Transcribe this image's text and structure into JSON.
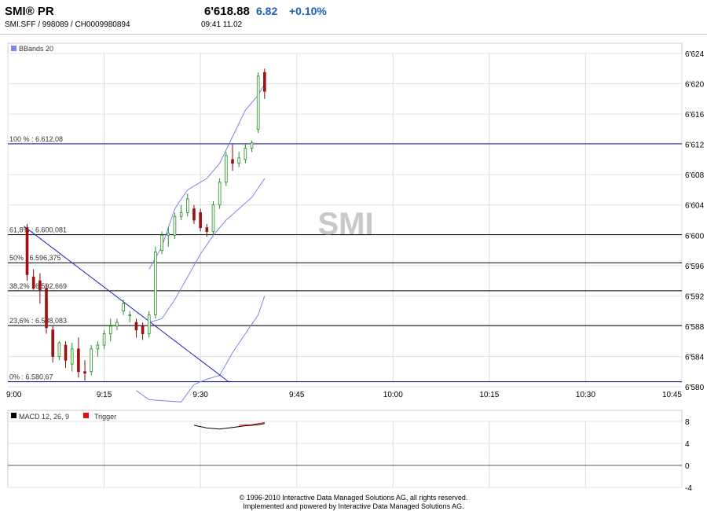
{
  "header": {
    "title": "SMI® PR",
    "subtitle": "SMI.SFF   /   998089   /   CH0009980894",
    "price": "6'618.88",
    "change": "6.82",
    "change_pct": "+0.10%",
    "time": "09:41   11.02",
    "change_color": "#1a5fb4"
  },
  "footer": {
    "line1": "© 1996-2010 Interactive Data Managed Solutions AG, all rights reserved.",
    "line2": "Implemented and powered by Interactive Data Managed Solutions AG."
  },
  "chart_data": [
    {
      "type": "candlestick",
      "legend": [
        {
          "label": "BBands 20",
          "color": "#8080ee"
        }
      ],
      "watermark": "SMI",
      "x_ticks": [
        "9:00",
        "9:15",
        "9:30",
        "9:45",
        "10:00",
        "10:15",
        "10:30",
        "10:45"
      ],
      "y_ticks": [
        "6'624",
        "6'620",
        "6'616",
        "6'612",
        "6'608",
        "6'604",
        "6'600",
        "6'596",
        "6'592",
        "6'588",
        "6'584",
        "6'580"
      ],
      "xlim": [
        0,
        105
      ],
      "ylim": [
        6580,
        6624
      ],
      "grid": true,
      "fib_levels": [
        {
          "label": "100 % : 6.612,08",
          "value": 6612.08,
          "color": "#1a1a9a"
        },
        {
          "label": "61,8% : 6.600,081",
          "value": 6600.081,
          "color": "#000000"
        },
        {
          "label": "50% : 6.596,375",
          "value": 6596.375,
          "color": "#000000"
        },
        {
          "label": "38,2% : 6.592,669",
          "value": 6592.669,
          "color": "#000000"
        },
        {
          "label": "23,6% : 6.588,083",
          "value": 6588.083,
          "color": "#000000"
        },
        {
          "label": "0% : 6.580,67",
          "value": 6580.67,
          "color": "#1a1a9a"
        }
      ],
      "trendline": {
        "from": [
          2.5,
          6601.2
        ],
        "to": [
          34.5,
          6580.6
        ],
        "color": "#2020c0"
      },
      "candles": [
        {
          "t": 3,
          "o": 6601.0,
          "h": 6601.5,
          "l": 6594.0,
          "c": 6594.8
        },
        {
          "t": 4,
          "o": 6594.5,
          "h": 6595.5,
          "l": 6592.8,
          "c": 6593.0
        },
        {
          "t": 5,
          "o": 6594.0,
          "h": 6595.0,
          "l": 6591.0,
          "c": 6592.8
        },
        {
          "t": 6,
          "o": 6593.0,
          "h": 6593.5,
          "l": 6587.0,
          "c": 6587.8
        },
        {
          "t": 7,
          "o": 6587.5,
          "h": 6588.0,
          "l": 6583.2,
          "c": 6584.0
        },
        {
          "t": 8,
          "o": 6584.0,
          "h": 6586.0,
          "l": 6583.5,
          "c": 6585.8
        },
        {
          "t": 9,
          "o": 6585.5,
          "h": 6586.0,
          "l": 6582.5,
          "c": 6583.5
        },
        {
          "t": 10,
          "o": 6583.0,
          "h": 6585.8,
          "l": 6582.0,
          "c": 6585.0
        },
        {
          "t": 11,
          "o": 6585.0,
          "h": 6586.5,
          "l": 6581.2,
          "c": 6582.0
        },
        {
          "t": 12,
          "o": 6582.0,
          "h": 6583.5,
          "l": 6580.8,
          "c": 6581.8
        },
        {
          "t": 13,
          "o": 6582.0,
          "h": 6585.5,
          "l": 6581.5,
          "c": 6585.0
        },
        {
          "t": 14,
          "o": 6585.0,
          "h": 6586.0,
          "l": 6584.0,
          "c": 6585.5
        },
        {
          "t": 15,
          "o": 6585.5,
          "h": 6587.5,
          "l": 6585.0,
          "c": 6587.0
        },
        {
          "t": 16,
          "o": 6587.0,
          "h": 6589.0,
          "l": 6586.0,
          "c": 6588.0
        },
        {
          "t": 17,
          "o": 6588.0,
          "h": 6589.0,
          "l": 6587.5,
          "c": 6588.5
        },
        {
          "t": 18,
          "o": 6590.0,
          "h": 6591.5,
          "l": 6589.5,
          "c": 6591.0
        },
        {
          "t": 19,
          "o": 6589.5,
          "h": 6590.0,
          "l": 6588.5,
          "c": 6589.5
        },
        {
          "t": 20,
          "o": 6588.5,
          "h": 6589.0,
          "l": 6586.5,
          "c": 6587.5
        },
        {
          "t": 21,
          "o": 6588.0,
          "h": 6588.5,
          "l": 6586.2,
          "c": 6587.0
        },
        {
          "t": 22,
          "o": 6587.0,
          "h": 6590.0,
          "l": 6586.5,
          "c": 6589.5
        },
        {
          "t": 23,
          "o": 6589.5,
          "h": 6598.5,
          "l": 6589.0,
          "c": 6597.8
        },
        {
          "t": 24,
          "o": 6598.0,
          "h": 6600.5,
          "l": 6597.5,
          "c": 6600.0
        },
        {
          "t": 25,
          "o": 6600.0,
          "h": 6601.0,
          "l": 6598.5,
          "c": 6600.3
        },
        {
          "t": 26,
          "o": 6600.0,
          "h": 6603.0,
          "l": 6599.5,
          "c": 6602.5
        },
        {
          "t": 27,
          "o": 6602.5,
          "h": 6604.0,
          "l": 6602.0,
          "c": 6603.0
        },
        {
          "t": 28,
          "o": 6603.0,
          "h": 6605.5,
          "l": 6602.5,
          "c": 6604.8
        },
        {
          "t": 29,
          "o": 6603.5,
          "h": 6604.0,
          "l": 6601.5,
          "c": 6602.0
        },
        {
          "t": 30,
          "o": 6603.0,
          "h": 6603.5,
          "l": 6600.5,
          "c": 6601.0
        },
        {
          "t": 31,
          "o": 6601.0,
          "h": 6601.5,
          "l": 6599.8,
          "c": 6600.5
        },
        {
          "t": 32,
          "o": 6600.5,
          "h": 6604.5,
          "l": 6600.0,
          "c": 6604.0
        },
        {
          "t": 33,
          "o": 6604.0,
          "h": 6607.5,
          "l": 6603.5,
          "c": 6607.0
        },
        {
          "t": 34,
          "o": 6607.0,
          "h": 6611.0,
          "l": 6606.5,
          "c": 6610.5
        },
        {
          "t": 35,
          "o": 6610.0,
          "h": 6612.0,
          "l": 6608.5,
          "c": 6609.5
        },
        {
          "t": 36,
          "o": 6609.5,
          "h": 6611.0,
          "l": 6609.0,
          "c": 6610.2
        },
        {
          "t": 37,
          "o": 6610.0,
          "h": 6612.0,
          "l": 6609.5,
          "c": 6611.5
        },
        {
          "t": 38,
          "o": 6611.5,
          "h": 6612.5,
          "l": 6611.0,
          "c": 6612.2
        },
        {
          "t": 39,
          "o": 6614.0,
          "h": 6621.5,
          "l": 6613.5,
          "c": 6621.0
        },
        {
          "t": 40,
          "o": 6621.5,
          "h": 6622.0,
          "l": 6618.0,
          "c": 6619.0
        }
      ],
      "bbands_upper": [
        [
          22,
          6595.5
        ],
        [
          24,
          6598.5
        ],
        [
          26,
          6603.5
        ],
        [
          28,
          6606.0
        ],
        [
          31,
          6607.5
        ],
        [
          33,
          6609.5
        ],
        [
          35,
          6613.0
        ],
        [
          37,
          6616.5
        ],
        [
          39,
          6618.5
        ],
        [
          40,
          6620.0
        ]
      ],
      "bbands_middle": [
        [
          22,
          6588.5
        ],
        [
          24,
          6589.0
        ],
        [
          26,
          6591.5
        ],
        [
          28,
          6594.5
        ],
        [
          30,
          6597.5
        ],
        [
          32,
          6600.0
        ],
        [
          34,
          6602.0
        ],
        [
          36,
          6603.5
        ],
        [
          38,
          6605.0
        ],
        [
          40,
          6607.5
        ]
      ],
      "bbands_lower": [
        [
          20,
          6579.5
        ],
        [
          22,
          6578.3
        ],
        [
          27,
          6578.0
        ],
        [
          29,
          6580.3
        ],
        [
          31,
          6581.0
        ],
        [
          33,
          6581.5
        ],
        [
          35,
          6584.5
        ],
        [
          37,
          6587.0
        ],
        [
          39,
          6589.5
        ],
        [
          40,
          6592.0
        ]
      ]
    },
    {
      "type": "line",
      "legend": [
        {
          "label": "MACD 12, 26, 9",
          "color": "#000000"
        },
        {
          "label": "Trigger",
          "color": "#dd1111"
        }
      ],
      "y_ticks": [
        "8",
        "4",
        "0",
        "-4"
      ],
      "ylim": [
        -4,
        8
      ],
      "xlim": [
        0,
        105
      ],
      "grid": true,
      "series": [
        {
          "name": "MACD 12, 26, 9",
          "color": "#000000",
          "points": [
            [
              29,
              7.3
            ],
            [
              31,
              6.8
            ],
            [
              33,
              6.6
            ],
            [
              35,
              6.9
            ],
            [
              37,
              7.2
            ],
            [
              39,
              7.4
            ],
            [
              40,
              7.6
            ]
          ]
        },
        {
          "name": "Trigger",
          "color": "#dd1111",
          "points": [
            [
              36,
              7.3
            ],
            [
              38,
              7.4
            ],
            [
              40,
              7.8
            ]
          ]
        }
      ]
    }
  ]
}
